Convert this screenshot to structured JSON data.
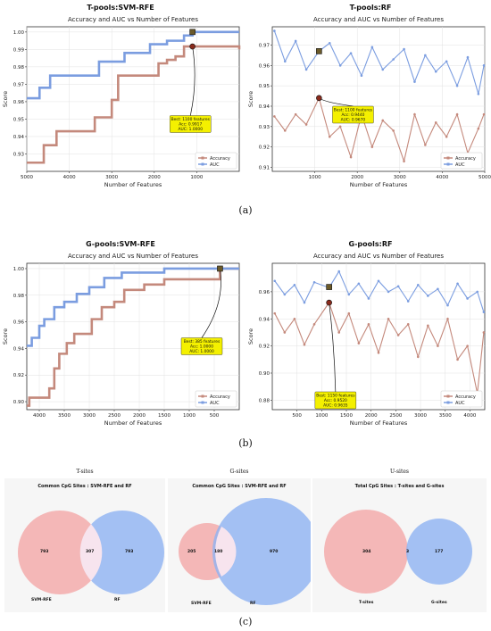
{
  "figure_labels": {
    "a": "(a)",
    "b": "(b)",
    "c": "(c)"
  },
  "chart_data": [
    {
      "id": "t_svm",
      "type": "line",
      "panel_title": "T-pools:SVM-RFE",
      "title": "Accuracy and AUC vs Number of Features",
      "xlabel": "Number of Features",
      "ylabel": "Score",
      "xlim": [
        5000,
        0
      ],
      "ylim": [
        0.92,
        1.003
      ],
      "xticks": [
        5000,
        4000,
        3000,
        2000,
        1000
      ],
      "yticks": [
        0.93,
        0.94,
        0.95,
        0.96,
        0.97,
        0.98,
        0.99,
        1.0
      ],
      "ytick_labels": [
        "0.93",
        "0.94",
        "0.95",
        "0.96",
        "0.97",
        "0.98",
        "0.99",
        "1.00"
      ],
      "grid": true,
      "legend_position": "lower-right",
      "series": [
        {
          "name": "Accuracy",
          "color": "#c4897c",
          "step": true,
          "x": [
            5000,
            4600,
            4300,
            3700,
            3400,
            3000,
            2850,
            2400,
            2150,
            1900,
            1700,
            1500,
            1300,
            1100,
            900,
            300,
            0
          ],
          "y": [
            0.925,
            0.935,
            0.943,
            0.943,
            0.951,
            0.961,
            0.975,
            0.975,
            0.975,
            0.982,
            0.984,
            0.986,
            0.9917,
            0.9917,
            0.9917,
            0.9917,
            0.99
          ]
        },
        {
          "name": "AUC",
          "color": "#7b9de0",
          "step": true,
          "x": [
            5000,
            4700,
            4450,
            3850,
            3300,
            3000,
            2700,
            2100,
            1700,
            1300,
            1100,
            1000,
            0
          ],
          "y": [
            0.962,
            0.968,
            0.975,
            0.975,
            0.983,
            0.983,
            0.988,
            0.993,
            0.995,
            0.998,
            1.0,
            1.0,
            1.0
          ]
        }
      ],
      "best_markers": [
        {
          "x": 1100,
          "y": 1.0,
          "shape": "square"
        },
        {
          "x": 1100,
          "y": 0.9917,
          "shape": "circle"
        }
      ],
      "annotation": {
        "lines": [
          "Best: 1100 features",
          "Acc: 0.9917",
          "AUC: 1.0000"
        ],
        "x": 1150,
        "y": 0.952
      }
    },
    {
      "id": "t_rf",
      "type": "line",
      "panel_title": "T-pools:RF",
      "title": "Accuracy and AUC vs Number of Features",
      "xlabel": "Number of Features",
      "ylabel": "Score",
      "xlim": [
        0,
        5000
      ],
      "ylim": [
        0.908,
        0.979
      ],
      "xticks": [
        1000,
        2000,
        3000,
        4000,
        5000
      ],
      "yticks": [
        0.91,
        0.92,
        0.93,
        0.94,
        0.95,
        0.96,
        0.97
      ],
      "ytick_labels": [
        "0.91",
        "0.92",
        "0.93",
        "0.94",
        "0.95",
        "0.96",
        "0.97"
      ],
      "grid": true,
      "legend_position": "lower-right",
      "series": [
        {
          "name": "Accuracy",
          "color": "#c4897c",
          "x": [
            50,
            300,
            550,
            800,
            1100,
            1350,
            1600,
            1850,
            2100,
            2350,
            2600,
            2850,
            3100,
            3350,
            3600,
            3850,
            4100,
            4350,
            4600,
            4850,
            4980
          ],
          "y": [
            0.935,
            0.928,
            0.936,
            0.931,
            0.944,
            0.925,
            0.93,
            0.915,
            0.936,
            0.92,
            0.933,
            0.928,
            0.913,
            0.936,
            0.921,
            0.932,
            0.925,
            0.936,
            0.917,
            0.929,
            0.936
          ]
        },
        {
          "name": "AUC",
          "color": "#7b9de0",
          "x": [
            50,
            300,
            550,
            800,
            1100,
            1350,
            1600,
            1850,
            2100,
            2350,
            2600,
            2850,
            3100,
            3350,
            3600,
            3850,
            4100,
            4350,
            4600,
            4850,
            4980
          ],
          "y": [
            0.977,
            0.962,
            0.972,
            0.958,
            0.967,
            0.971,
            0.96,
            0.966,
            0.955,
            0.969,
            0.958,
            0.963,
            0.968,
            0.952,
            0.965,
            0.957,
            0.962,
            0.95,
            0.964,
            0.946,
            0.96
          ]
        }
      ],
      "best_markers": [
        {
          "x": 1100,
          "y": 0.967,
          "shape": "square"
        },
        {
          "x": 1100,
          "y": 0.944,
          "shape": "circle"
        }
      ],
      "annotation": {
        "lines": [
          "Best: 1100 features",
          "Acc: 0.9440",
          "AUC: 0.9670"
        ],
        "x": 1900,
        "y": 0.94
      }
    },
    {
      "id": "g_svm",
      "type": "line",
      "panel_title": "G-pools:SVM-RFE",
      "title": "Accuracy and AUC vs Number of Features",
      "xlabel": "Number of Features",
      "ylabel": "Score",
      "xlim": [
        4250,
        0
      ],
      "ylim": [
        0.894,
        1.004
      ],
      "xticks": [
        4000,
        3500,
        3000,
        2500,
        2000,
        1500,
        1000,
        500
      ],
      "yticks": [
        0.9,
        0.92,
        0.94,
        0.96,
        0.98,
        1.0
      ],
      "ytick_labels": [
        "0.90",
        "0.92",
        "0.94",
        "0.96",
        "0.98",
        "1.00"
      ],
      "grid": true,
      "legend_position": "lower-right",
      "series": [
        {
          "name": "Accuracy",
          "color": "#c4897c",
          "step": true,
          "x": [
            4250,
            4200,
            3800,
            3700,
            3600,
            3450,
            3300,
            2950,
            2750,
            2500,
            2300,
            1900,
            1500,
            1000,
            385,
            0
          ],
          "y": [
            0.897,
            0.903,
            0.91,
            0.925,
            0.936,
            0.944,
            0.951,
            0.962,
            0.971,
            0.975,
            0.984,
            0.988,
            0.992,
            0.992,
            1.0,
            1.0
          ]
        },
        {
          "name": "AUC",
          "color": "#7b9de0",
          "step": true,
          "x": [
            4250,
            4150,
            4000,
            3900,
            3700,
            3500,
            3250,
            3000,
            2700,
            2350,
            1500,
            1100,
            385,
            0
          ],
          "y": [
            0.942,
            0.948,
            0.957,
            0.962,
            0.971,
            0.975,
            0.981,
            0.986,
            0.993,
            0.997,
            1.0,
            1.0,
            1.0,
            1.0
          ]
        }
      ],
      "best_markers": [
        {
          "x": 385,
          "y": 1.0,
          "shape": "square"
        }
      ],
      "annotation": {
        "lines": [
          "Best: 385 features",
          "Acc: 1.0000",
          "AUC: 1.0000"
        ],
        "x": 750,
        "y": 0.948
      }
    },
    {
      "id": "g_rf",
      "type": "line",
      "panel_title": "G-pools:RF",
      "title": "Accuracy and AUC vs Number of Features",
      "xlabel": "Number of Features",
      "ylabel": "Score",
      "xlim": [
        0,
        4300
      ],
      "ylim": [
        0.873,
        0.981
      ],
      "xticks": [
        500,
        1000,
        1500,
        2000,
        2500,
        3000,
        3500,
        4000
      ],
      "yticks": [
        0.88,
        0.9,
        0.92,
        0.94,
        0.96
      ],
      "ytick_labels": [
        "0.88",
        "0.90",
        "0.92",
        "0.94",
        "0.96"
      ],
      "grid": true,
      "legend_position": "lower-right",
      "series": [
        {
          "name": "Accuracy",
          "color": "#c4897c",
          "x": [
            50,
            250,
            450,
            650,
            850,
            1150,
            1350,
            1550,
            1750,
            1950,
            2150,
            2350,
            2550,
            2750,
            2950,
            3150,
            3350,
            3550,
            3750,
            3950,
            4150,
            4280
          ],
          "y": [
            0.944,
            0.93,
            0.94,
            0.921,
            0.936,
            0.952,
            0.93,
            0.944,
            0.922,
            0.936,
            0.915,
            0.94,
            0.928,
            0.936,
            0.912,
            0.935,
            0.92,
            0.94,
            0.91,
            0.92,
            0.885,
            0.93
          ]
        },
        {
          "name": "AUC",
          "color": "#7b9de0",
          "x": [
            50,
            250,
            450,
            650,
            850,
            1150,
            1350,
            1550,
            1750,
            1950,
            2150,
            2350,
            2550,
            2750,
            2950,
            3150,
            3350,
            3550,
            3750,
            3950,
            4150,
            4280
          ],
          "y": [
            0.968,
            0.958,
            0.965,
            0.952,
            0.967,
            0.963,
            0.975,
            0.958,
            0.966,
            0.955,
            0.968,
            0.96,
            0.964,
            0.953,
            0.965,
            0.957,
            0.962,
            0.95,
            0.966,
            0.955,
            0.96,
            0.945
          ]
        }
      ],
      "best_markers": [
        {
          "x": 1150,
          "y": 0.9635,
          "shape": "square"
        },
        {
          "x": 1150,
          "y": 0.952,
          "shape": "circle"
        }
      ],
      "annotation": {
        "lines": [
          "Best: 1150 features",
          "Acc: 0.9520",
          "AUC: 0.9635"
        ],
        "x": 1280,
        "y": 0.883
      }
    }
  ],
  "venn_panels": [
    {
      "id": "t",
      "panel_label": "T-sites",
      "title": "Common CpG Sites : SVM-RFE and RF",
      "left_name": "SVM-RFE",
      "right_name": "RF",
      "left_only": "793",
      "overlap": "307",
      "right_only": "793",
      "left_color": "#f4a7a7",
      "right_color": "#8fb3f2"
    },
    {
      "id": "g",
      "panel_label": "G-sites",
      "title": "Common CpG Sites : SVM-RFE and RF",
      "left_name": "SVM-RFE",
      "right_name": "RF",
      "left_only": "205",
      "overlap": "180",
      "right_only": "970",
      "left_color": "#f4a7a7",
      "right_color": "#8fb3f2"
    },
    {
      "id": "u",
      "panel_label": "U-sites",
      "title": "Total CpG Sites : T-sites and G-sites",
      "left_name": "T-sites",
      "right_name": "G-sites",
      "left_only": "304",
      "overlap": "3",
      "right_only": "177",
      "left_color": "#f4a7a7",
      "right_color": "#8fb3f2"
    }
  ]
}
